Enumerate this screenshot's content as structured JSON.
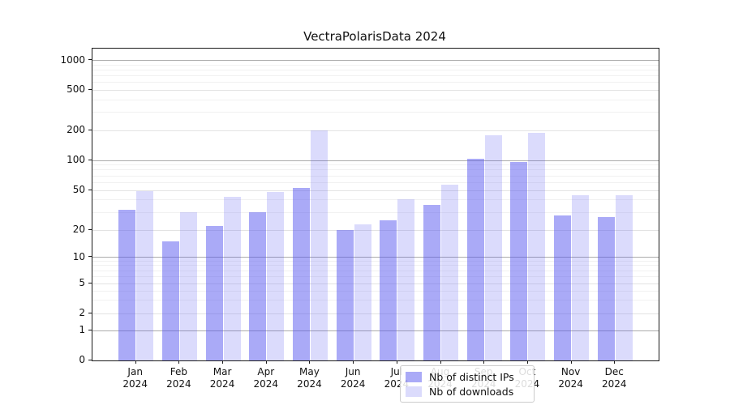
{
  "title": "VectraPolarisData 2024",
  "legend": {
    "items": [
      {
        "label": "Nb of distinct IPs",
        "color": "rgba(85,85,240,0.5)"
      },
      {
        "label": "Nb of downloads",
        "color": "rgba(85,85,240,0.21)"
      }
    ]
  },
  "axes": {
    "y_tick_labels": [
      "0",
      "1",
      "2",
      "5",
      "10",
      "20",
      "50",
      "100",
      "200",
      "500",
      "1000"
    ],
    "x_month_labels": [
      "Jan",
      "Feb",
      "Mar",
      "Apr",
      "May",
      "Jun",
      "Jul",
      "Aug",
      "Sep",
      "Oct",
      "Nov",
      "Dec"
    ],
    "x_year_label": "2024"
  },
  "colors": {
    "bar_ips": "rgba(85,85,240,0.5)",
    "bar_downloads": "rgba(85,85,240,0.21)",
    "grid_decade": "#ababab",
    "grid_sub": "#e3e3e3",
    "grid_minor": "#f1f1f1"
  },
  "chart_data": {
    "type": "bar",
    "title": "VectraPolarisData 2024",
    "categories": [
      "Jan 2024",
      "Feb 2024",
      "Mar 2024",
      "Apr 2024",
      "May 2024",
      "Jun 2024",
      "Jul 2024",
      "Aug 2024",
      "Sep 2024",
      "Oct 2024",
      "Nov 2024",
      "Dec 2024"
    ],
    "series": [
      {
        "name": "Nb of distinct IPs",
        "values": [
          32,
          15,
          22,
          30,
          53,
          20,
          25,
          36,
          104,
          97,
          28,
          27
        ]
      },
      {
        "name": "Nb of downloads",
        "values": [
          49,
          30,
          43,
          48,
          199,
          23,
          41,
          57,
          180,
          188,
          45,
          45
        ]
      }
    ],
    "yscale": "symlog",
    "ylim": [
      0,
      1300
    ],
    "yticks": [
      0,
      1,
      2,
      5,
      10,
      20,
      50,
      100,
      200,
      500,
      1000
    ],
    "y_minor_ticks": [
      3,
      4,
      6,
      7,
      8,
      9,
      30,
      40,
      60,
      70,
      80,
      90,
      300,
      400,
      600,
      700,
      800,
      900
    ],
    "grid": true,
    "legend_position": "lower center"
  }
}
